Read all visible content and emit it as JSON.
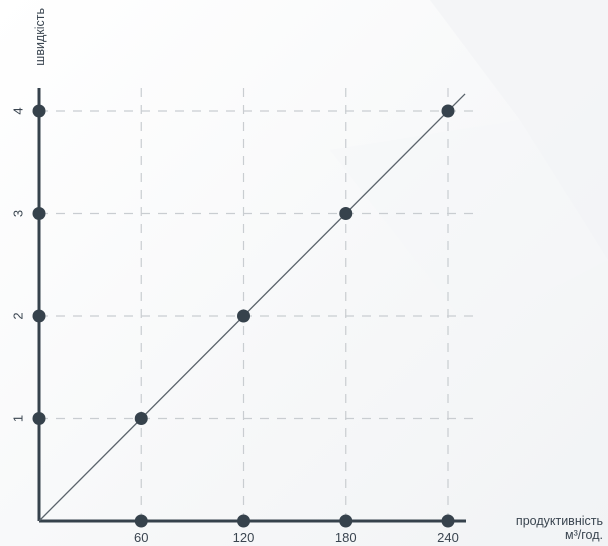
{
  "colors": {
    "axis": "#36424c",
    "grid": "#c9cdd1",
    "line": "#5a636b",
    "point": "#36424c",
    "text": "#3a4550"
  },
  "chart_data": {
    "type": "line",
    "title": "",
    "xlabel": "продуктивність",
    "xlabel_unit": "м³/год.",
    "ylabel": "швидкість",
    "x_ticks": [
      60,
      120,
      180,
      240
    ],
    "y_ticks": [
      1,
      2,
      3,
      4
    ],
    "xlim": [
      0,
      240
    ],
    "ylim": [
      0,
      4
    ],
    "grid": true,
    "series": [
      {
        "points": [
          {
            "x": 60,
            "y": 1
          },
          {
            "x": 120,
            "y": 2
          },
          {
            "x": 180,
            "y": 3
          },
          {
            "x": 240,
            "y": 4
          }
        ]
      }
    ]
  }
}
